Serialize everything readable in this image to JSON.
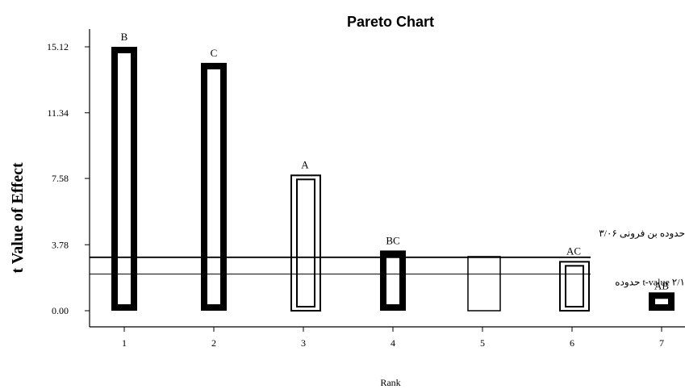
{
  "chart_data": {
    "type": "bar",
    "title": "Pareto Chart",
    "xlabel": "Rank",
    "ylabel": "t Value of Effect",
    "categories": [
      "1",
      "2",
      "3",
      "4",
      "5",
      "6",
      "7"
    ],
    "yticks": [
      "0.00",
      "3.78",
      "7.58",
      "11.34",
      "15.12"
    ],
    "ylim": [
      0,
      15.12
    ],
    "bars": [
      {
        "label": "B",
        "value": 15.12,
        "sign": "positive"
      },
      {
        "label": "C",
        "value": 14.2,
        "sign": "positive"
      },
      {
        "label": "A",
        "value": 7.8,
        "sign": "negative"
      },
      {
        "label": "BC",
        "value": 3.45,
        "sign": "positive"
      },
      {
        "label": "",
        "value": 3.1,
        "sign": "none"
      },
      {
        "label": "AC",
        "value": 2.85,
        "sign": "negative"
      },
      {
        "label": "AB",
        "value": 1.05,
        "sign": "positive"
      }
    ],
    "reference_lines": [
      {
        "label": "حدوده بن فرونی ۳/۰۶",
        "value": 3.06
      },
      {
        "label": "حدوده t-value ۲/۱",
        "value": 2.1
      }
    ],
    "grid": false,
    "legend": "none"
  }
}
